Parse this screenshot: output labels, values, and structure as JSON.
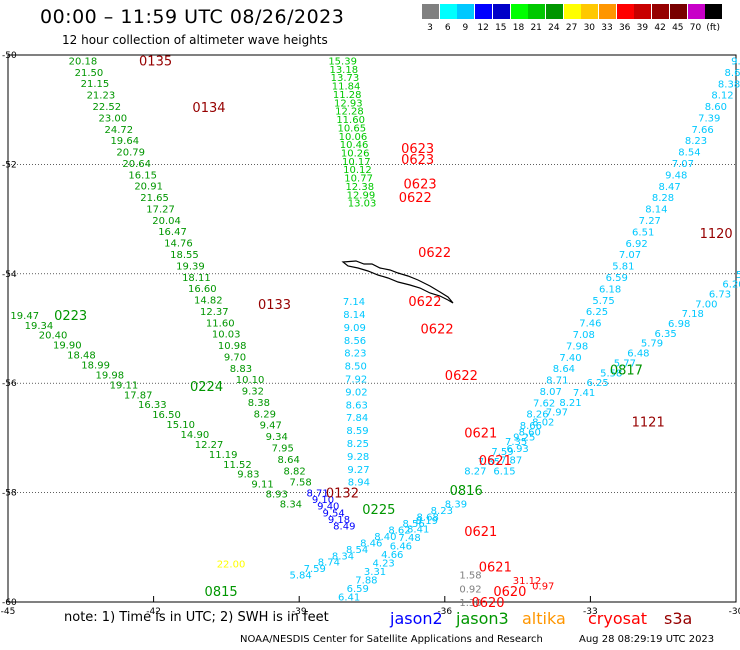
{
  "title": "00:00 – 11:59 UTC 08/26/2023",
  "subtitle": "12 hour collection of altimeter wave heights",
  "colorbar": {
    "colors": [
      "#808080",
      "#00ffff",
      "#00c8ff",
      "#0000ff",
      "#0000c8",
      "#00ff00",
      "#00c800",
      "#009600",
      "#ffff00",
      "#ffc800",
      "#ff9600",
      "#ff0000",
      "#c80000",
      "#960000",
      "#780000",
      "#c800c8",
      "#000000"
    ],
    "labels": [
      "3",
      "6",
      "9",
      "12",
      "15",
      "18",
      "21",
      "24",
      "27",
      "30",
      "33",
      "36",
      "39",
      "42",
      "45",
      "70",
      "(ft)"
    ]
  },
  "axes": {
    "lon_labels": [
      "-45",
      "-42",
      "-39",
      "-36",
      "-33",
      "-30"
    ],
    "lat_labels": [
      "-50",
      "-52",
      "-54",
      "-56",
      "-58",
      "-60"
    ]
  },
  "note": "note:  1) Time is in UTC;  2) SWH is in feet",
  "satellites": [
    {
      "name": "jason2",
      "color": "#0000ff"
    },
    {
      "name": "jason3",
      "color": "#009600"
    },
    {
      "name": "altika",
      "color": "#ff9600"
    },
    {
      "name": "cryosat",
      "color": "#ff0000"
    },
    {
      "name": "s3a",
      "color": "#960000"
    }
  ],
  "footer_org": "NOAA/NESDIS Center for Satellite Applications and Research",
  "footer_time": "Aug 28 08:29:19 UTC 2023",
  "time_labels": [
    {
      "t": "0135",
      "lon": -42.3,
      "lat": -50.1,
      "color": "#960000"
    },
    {
      "t": "0134",
      "lon": -41.2,
      "lat": -50.95,
      "color": "#960000"
    },
    {
      "t": "0133",
      "lon": -39.85,
      "lat": -54.55,
      "color": "#960000"
    },
    {
      "t": "0132",
      "lon": -38.45,
      "lat": -58.0,
      "color": "#960000"
    },
    {
      "t": "1120",
      "lon": -30.75,
      "lat": -53.25,
      "color": "#960000"
    },
    {
      "t": "1121",
      "lon": -32.15,
      "lat": -56.7,
      "color": "#960000"
    },
    {
      "t": "0223",
      "lon": -44.05,
      "lat": -54.75,
      "color": "#009600"
    },
    {
      "t": "0224",
      "lon": -41.25,
      "lat": -56.05,
      "color": "#009600"
    },
    {
      "t": "0225",
      "lon": -37.7,
      "lat": -58.3,
      "color": "#009600"
    },
    {
      "t": "0815",
      "lon": -40.95,
      "lat": -59.8,
      "color": "#009600"
    },
    {
      "t": "0816",
      "lon": -35.9,
      "lat": -57.95,
      "color": "#009600"
    },
    {
      "t": "0817",
      "lon": -32.6,
      "lat": -55.75,
      "color": "#009600"
    },
    {
      "t": "0623",
      "lon": -36.9,
      "lat": -51.7,
      "color": "#ff0000"
    },
    {
      "t": "0623",
      "lon": -36.9,
      "lat": -51.9,
      "color": "#ff0000"
    },
    {
      "t": "0623",
      "lon": -36.85,
      "lat": -52.35,
      "color": "#ff0000"
    },
    {
      "t": "0622",
      "lon": -36.95,
      "lat": -52.6,
      "color": "#ff0000"
    },
    {
      "t": "0622",
      "lon": -36.55,
      "lat": -53.6,
      "color": "#ff0000"
    },
    {
      "t": "0622",
      "lon": -36.75,
      "lat": -54.5,
      "color": "#ff0000"
    },
    {
      "t": "0622",
      "lon": -36.5,
      "lat": -55.0,
      "color": "#ff0000"
    },
    {
      "t": "0622",
      "lon": -36.0,
      "lat": -55.85,
      "color": "#ff0000"
    },
    {
      "t": "0621",
      "lon": -35.6,
      "lat": -56.9,
      "color": "#ff0000"
    },
    {
      "t": "0621",
      "lon": -35.3,
      "lat": -57.4,
      "color": "#ff0000"
    },
    {
      "t": "0621",
      "lon": -35.6,
      "lat": -58.7,
      "color": "#ff0000"
    },
    {
      "t": "0621",
      "lon": -35.3,
      "lat": -59.35,
      "color": "#ff0000"
    },
    {
      "t": "0620",
      "lon": -35.45,
      "lat": -60.0,
      "color": "#ff0000"
    },
    {
      "t": "0620",
      "lon": -35.0,
      "lat": -59.8,
      "color": "#ff0000"
    }
  ],
  "tracks": [
    {
      "color": "#009600",
      "start": [
        -43.75,
        -50.1
      ],
      "end": [
        -39.2,
        -57.8
      ],
      "vals": [
        "20.18",
        "21.50",
        "21.15",
        "21.23",
        "22.52",
        "23.00",
        "24.72",
        "19.64",
        "20.79",
        "20.64",
        "16.15",
        "20.91",
        "21.65",
        "17.27",
        "20.04",
        "16.47",
        "14.76",
        "18.55",
        "19.39",
        "18.11",
        "16.60",
        "14.82",
        "12.37",
        "11.60",
        "10.03",
        "10.98",
        "9.70",
        "8.83",
        "10.10",
        "9.32",
        "8.38",
        "8.29",
        "9.47",
        "9.34",
        "7.95",
        "8.64",
        "8.82",
        "7.58"
      ]
    },
    {
      "color": "#009600",
      "start": [
        -44.95,
        -54.75
      ],
      "end": [
        -39.4,
        -58.2
      ],
      "vals": [
        "19.47",
        "19.34",
        "20.40",
        "19.90",
        "18.48",
        "18.99",
        "19.98",
        "19.11",
        "17.87",
        "16.33",
        "16.50",
        "15.10",
        "14.90",
        "12.27",
        "11.19",
        "11.52",
        "9.83",
        "9.11",
        "8.93",
        "8.34"
      ]
    },
    {
      "color": "#00c800",
      "start": [
        -38.4,
        -50.1
      ],
      "end": [
        -38.0,
        -52.7
      ],
      "vals": [
        "15.39",
        "13.18",
        "13.73",
        "11.84",
        "11.28",
        "12.93",
        "12.28",
        "11.60",
        "10.65",
        "10.06",
        "10.46",
        "10.26",
        "10.17",
        "10.12",
        "10.77",
        "12.38",
        "12.99",
        "13.03"
      ]
    },
    {
      "color": "#00c8ff",
      "start": [
        -38.1,
        -54.5
      ],
      "end": [
        -38.0,
        -57.8
      ],
      "vals": [
        "7.14",
        "8.14",
        "9.09",
        "8.56",
        "8.23",
        "8.50",
        "7.92",
        "9.02",
        "8.63",
        "7.84",
        "8.59",
        "8.25",
        "9.28",
        "9.27",
        "8.94"
      ]
    },
    {
      "color": "#00c8ff",
      "start": [
        -30.1,
        -50.1
      ],
      "end": [
        -35.0,
        -57.6
      ],
      "vals": [
        "9.87",
        "8.62",
        "8.38",
        "8.12",
        "8.60",
        "7.39",
        "7.66",
        "8.23",
        "8.54",
        "7.07",
        "9.48",
        "8.47",
        "8.28",
        "8.14",
        "7.27",
        "6.51",
        "6.92",
        "7.07",
        "5.81",
        "6.59",
        "6.18",
        "5.75",
        "6.25",
        "7.46",
        "7.08",
        "7.98",
        "7.40",
        "8.64",
        "8.71",
        "8.07",
        "7.62",
        "8.26",
        "8.66",
        "9.25",
        "6.93",
        "7.87",
        "6.15"
      ]
    },
    {
      "color": "#00c8ff",
      "start": [
        -30.0,
        -54.0
      ],
      "end": [
        -35.6,
        -57.6
      ],
      "vals": [
        "5.50",
        "6.20",
        "6.73",
        "7.00",
        "7.18",
        "6.98",
        "6.35",
        "5.79",
        "6.48",
        "5.77",
        "5.58",
        "6.25",
        "7.41",
        "8.21",
        "7.97",
        "8.02",
        "8.60",
        "7.35",
        "7.59",
        "7.85",
        "8.27"
      ]
    },
    {
      "color": "#00c8ff",
      "start": [
        -36.0,
        -58.2
      ],
      "end": [
        -39.2,
        -59.5
      ],
      "vals": [
        "8.39",
        "8.23",
        "8.68",
        "8.56",
        "8.62",
        "8.40",
        "8.46",
        "8.54",
        "8.34",
        "8.74",
        "7.59",
        "5.84"
      ]
    },
    {
      "color": "#00c8ff",
      "start": [
        -36.6,
        -58.5
      ],
      "end": [
        -38.2,
        -59.9
      ],
      "vals": [
        "8.19",
        "8.41",
        "7.48",
        "6.46",
        "4.66",
        "4.23",
        "3.31",
        "7.88",
        "6.59",
        "6.41"
      ]
    },
    {
      "color": "#0000ff",
      "start": [
        -38.85,
        -58.0
      ],
      "end": [
        -38.3,
        -58.6
      ],
      "vals": [
        "8.71",
        "9.10",
        "9.40",
        "9.54",
        "9.18",
        "8.49"
      ]
    },
    {
      "color": "#808080",
      "start": [
        -35.7,
        -59.5
      ],
      "end": [
        -35.7,
        -60.0
      ],
      "vals": [
        "1.58",
        "0.92",
        "1.38"
      ]
    },
    {
      "color": "#ff0000",
      "start": [
        -34.6,
        -59.6
      ],
      "end": [
        -34.2,
        -59.7
      ],
      "vals": [
        "31.12",
        "0.97"
      ]
    },
    {
      "color": "#ffff00",
      "start": [
        -40.7,
        -59.3
      ],
      "end": [
        -40.7,
        -59.3
      ],
      "vals": [
        "22.00"
      ]
    }
  ],
  "island_name": "South Georgia"
}
